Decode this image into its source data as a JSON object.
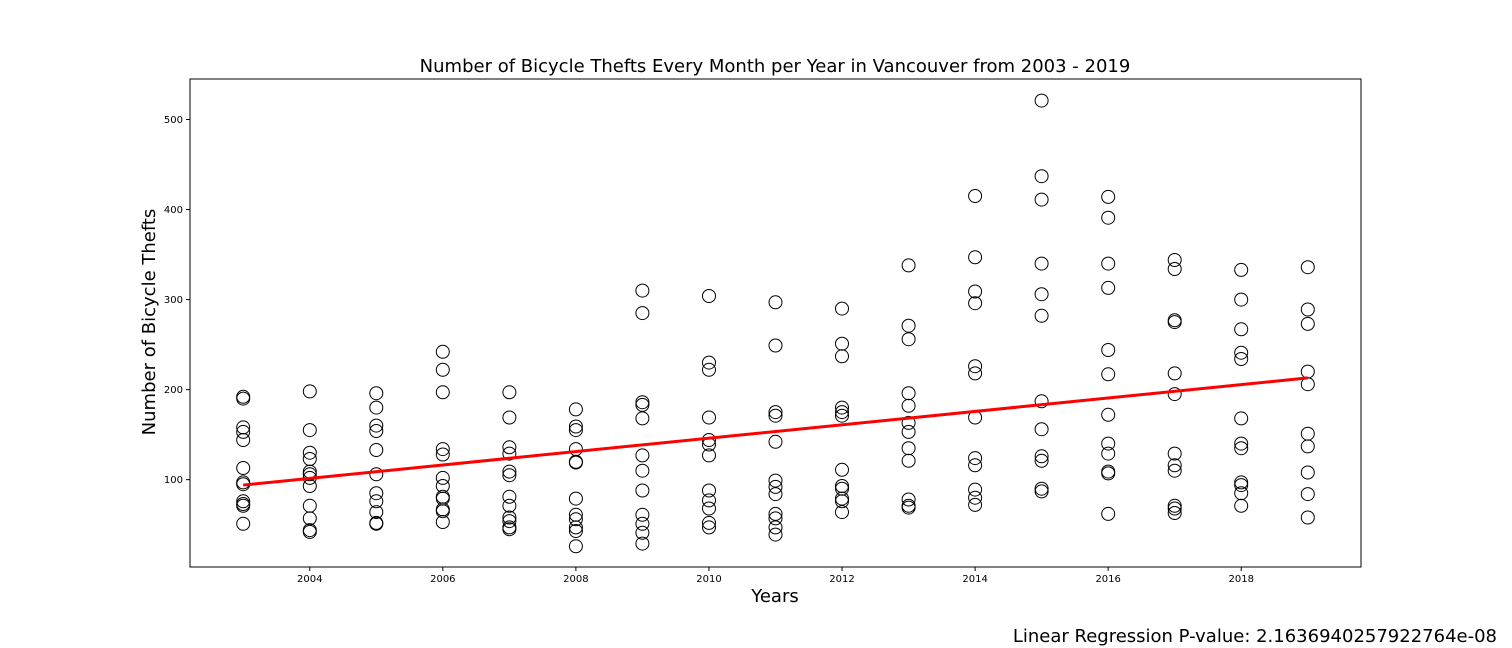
{
  "chart_data": {
    "type": "scatter",
    "title": "Number of Bicycle Thefts Every Month per Year in Vancouver from 2003 - 2019",
    "xlabel": "Years",
    "ylabel": "Number of Bicycle Thefts",
    "xlim": [
      2002.2,
      2019.8
    ],
    "ylim": [
      3,
      545
    ],
    "x_ticks": [
      2004,
      2006,
      2008,
      2010,
      2012,
      2014,
      2016,
      2018
    ],
    "y_ticks": [
      100,
      200,
      300,
      400,
      500
    ],
    "grid": false,
    "series": [
      {
        "marker": "open-circle",
        "color": "#000000",
        "points": [
          [
            2003,
            192
          ],
          [
            2003,
            190
          ],
          [
            2003,
            158
          ],
          [
            2003,
            153
          ],
          [
            2003,
            144
          ],
          [
            2003,
            113
          ],
          [
            2003,
            97
          ],
          [
            2003,
            95
          ],
          [
            2003,
            76
          ],
          [
            2003,
            73
          ],
          [
            2003,
            71
          ],
          [
            2003,
            51
          ],
          [
            2004,
            198
          ],
          [
            2004,
            155
          ],
          [
            2004,
            130
          ],
          [
            2004,
            123
          ],
          [
            2004,
            109
          ],
          [
            2004,
            106
          ],
          [
            2004,
            102
          ],
          [
            2004,
            93
          ],
          [
            2004,
            71
          ],
          [
            2004,
            57
          ],
          [
            2004,
            44
          ],
          [
            2004,
            42
          ],
          [
            2005,
            196
          ],
          [
            2005,
            180
          ],
          [
            2005,
            160
          ],
          [
            2005,
            154
          ],
          [
            2005,
            133
          ],
          [
            2005,
            106
          ],
          [
            2005,
            85
          ],
          [
            2005,
            76
          ],
          [
            2005,
            64
          ],
          [
            2005,
            52
          ],
          [
            2005,
            51
          ],
          [
            2006,
            242
          ],
          [
            2006,
            222
          ],
          [
            2006,
            197
          ],
          [
            2006,
            134
          ],
          [
            2006,
            128
          ],
          [
            2006,
            102
          ],
          [
            2006,
            93
          ],
          [
            2006,
            81
          ],
          [
            2006,
            79
          ],
          [
            2006,
            67
          ],
          [
            2006,
            65
          ],
          [
            2006,
            53
          ],
          [
            2007,
            197
          ],
          [
            2007,
            169
          ],
          [
            2007,
            136
          ],
          [
            2007,
            129
          ],
          [
            2007,
            109
          ],
          [
            2007,
            105
          ],
          [
            2007,
            81
          ],
          [
            2007,
            71
          ],
          [
            2007,
            58
          ],
          [
            2007,
            54
          ],
          [
            2007,
            47
          ],
          [
            2007,
            45
          ],
          [
            2008,
            178
          ],
          [
            2008,
            159
          ],
          [
            2008,
            155
          ],
          [
            2008,
            134
          ],
          [
            2008,
            120
          ],
          [
            2008,
            119
          ],
          [
            2008,
            79
          ],
          [
            2008,
            61
          ],
          [
            2008,
            56
          ],
          [
            2008,
            47
          ],
          [
            2008,
            43
          ],
          [
            2008,
            26
          ],
          [
            2009,
            310
          ],
          [
            2009,
            285
          ],
          [
            2009,
            186
          ],
          [
            2009,
            183
          ],
          [
            2009,
            168
          ],
          [
            2009,
            127
          ],
          [
            2009,
            110
          ],
          [
            2009,
            88
          ],
          [
            2009,
            61
          ],
          [
            2009,
            51
          ],
          [
            2009,
            41
          ],
          [
            2009,
            29
          ],
          [
            2010,
            304
          ],
          [
            2010,
            230
          ],
          [
            2010,
            222
          ],
          [
            2010,
            169
          ],
          [
            2010,
            144
          ],
          [
            2010,
            139
          ],
          [
            2010,
            127
          ],
          [
            2010,
            88
          ],
          [
            2010,
            77
          ],
          [
            2010,
            68
          ],
          [
            2010,
            52
          ],
          [
            2010,
            47
          ],
          [
            2011,
            297
          ],
          [
            2011,
            249
          ],
          [
            2011,
            175
          ],
          [
            2011,
            171
          ],
          [
            2011,
            142
          ],
          [
            2011,
            99
          ],
          [
            2011,
            92
          ],
          [
            2011,
            84
          ],
          [
            2011,
            62
          ],
          [
            2011,
            57
          ],
          [
            2011,
            47
          ],
          [
            2011,
            39
          ],
          [
            2012,
            290
          ],
          [
            2012,
            251
          ],
          [
            2012,
            237
          ],
          [
            2012,
            180
          ],
          [
            2012,
            175
          ],
          [
            2012,
            171
          ],
          [
            2012,
            111
          ],
          [
            2012,
            93
          ],
          [
            2012,
            90
          ],
          [
            2012,
            79
          ],
          [
            2012,
            76
          ],
          [
            2012,
            64
          ],
          [
            2013,
            338
          ],
          [
            2013,
            271
          ],
          [
            2013,
            256
          ],
          [
            2013,
            196
          ],
          [
            2013,
            182
          ],
          [
            2013,
            163
          ],
          [
            2013,
            153
          ],
          [
            2013,
            135
          ],
          [
            2013,
            121
          ],
          [
            2013,
            78
          ],
          [
            2013,
            71
          ],
          [
            2013,
            69
          ],
          [
            2014,
            415
          ],
          [
            2014,
            347
          ],
          [
            2014,
            309
          ],
          [
            2014,
            296
          ],
          [
            2014,
            226
          ],
          [
            2014,
            218
          ],
          [
            2014,
            169
          ],
          [
            2014,
            124
          ],
          [
            2014,
            116
          ],
          [
            2014,
            89
          ],
          [
            2014,
            80
          ],
          [
            2014,
            72
          ],
          [
            2015,
            521
          ],
          [
            2015,
            437
          ],
          [
            2015,
            411
          ],
          [
            2015,
            340
          ],
          [
            2015,
            306
          ],
          [
            2015,
            282
          ],
          [
            2015,
            187
          ],
          [
            2015,
            156
          ],
          [
            2015,
            126
          ],
          [
            2015,
            121
          ],
          [
            2015,
            90
          ],
          [
            2015,
            87
          ],
          [
            2016,
            414
          ],
          [
            2016,
            391
          ],
          [
            2016,
            340
          ],
          [
            2016,
            313
          ],
          [
            2016,
            244
          ],
          [
            2016,
            217
          ],
          [
            2016,
            172
          ],
          [
            2016,
            140
          ],
          [
            2016,
            129
          ],
          [
            2016,
            109
          ],
          [
            2016,
            107
          ],
          [
            2016,
            62
          ],
          [
            2017,
            344
          ],
          [
            2017,
            334
          ],
          [
            2017,
            277
          ],
          [
            2017,
            275
          ],
          [
            2017,
            218
          ],
          [
            2017,
            195
          ],
          [
            2017,
            129
          ],
          [
            2017,
            116
          ],
          [
            2017,
            110
          ],
          [
            2017,
            71
          ],
          [
            2017,
            68
          ],
          [
            2017,
            63
          ],
          [
            2018,
            333
          ],
          [
            2018,
            300
          ],
          [
            2018,
            267
          ],
          [
            2018,
            241
          ],
          [
            2018,
            234
          ],
          [
            2018,
            168
          ],
          [
            2018,
            140
          ],
          [
            2018,
            135
          ],
          [
            2018,
            97
          ],
          [
            2018,
            94
          ],
          [
            2018,
            85
          ],
          [
            2018,
            71
          ],
          [
            2019,
            336
          ],
          [
            2019,
            289
          ],
          [
            2019,
            273
          ],
          [
            2019,
            220
          ],
          [
            2019,
            206
          ],
          [
            2019,
            151
          ],
          [
            2019,
            137
          ],
          [
            2019,
            108
          ],
          [
            2019,
            84
          ],
          [
            2019,
            58
          ]
        ]
      },
      {
        "kind": "regression-line",
        "color": "#ff0000",
        "x": [
          2003,
          2019
        ],
        "y": [
          94,
          213
        ]
      }
    ],
    "annotation": "Linear Regression P-value: 2.1636940257922764e-08"
  }
}
